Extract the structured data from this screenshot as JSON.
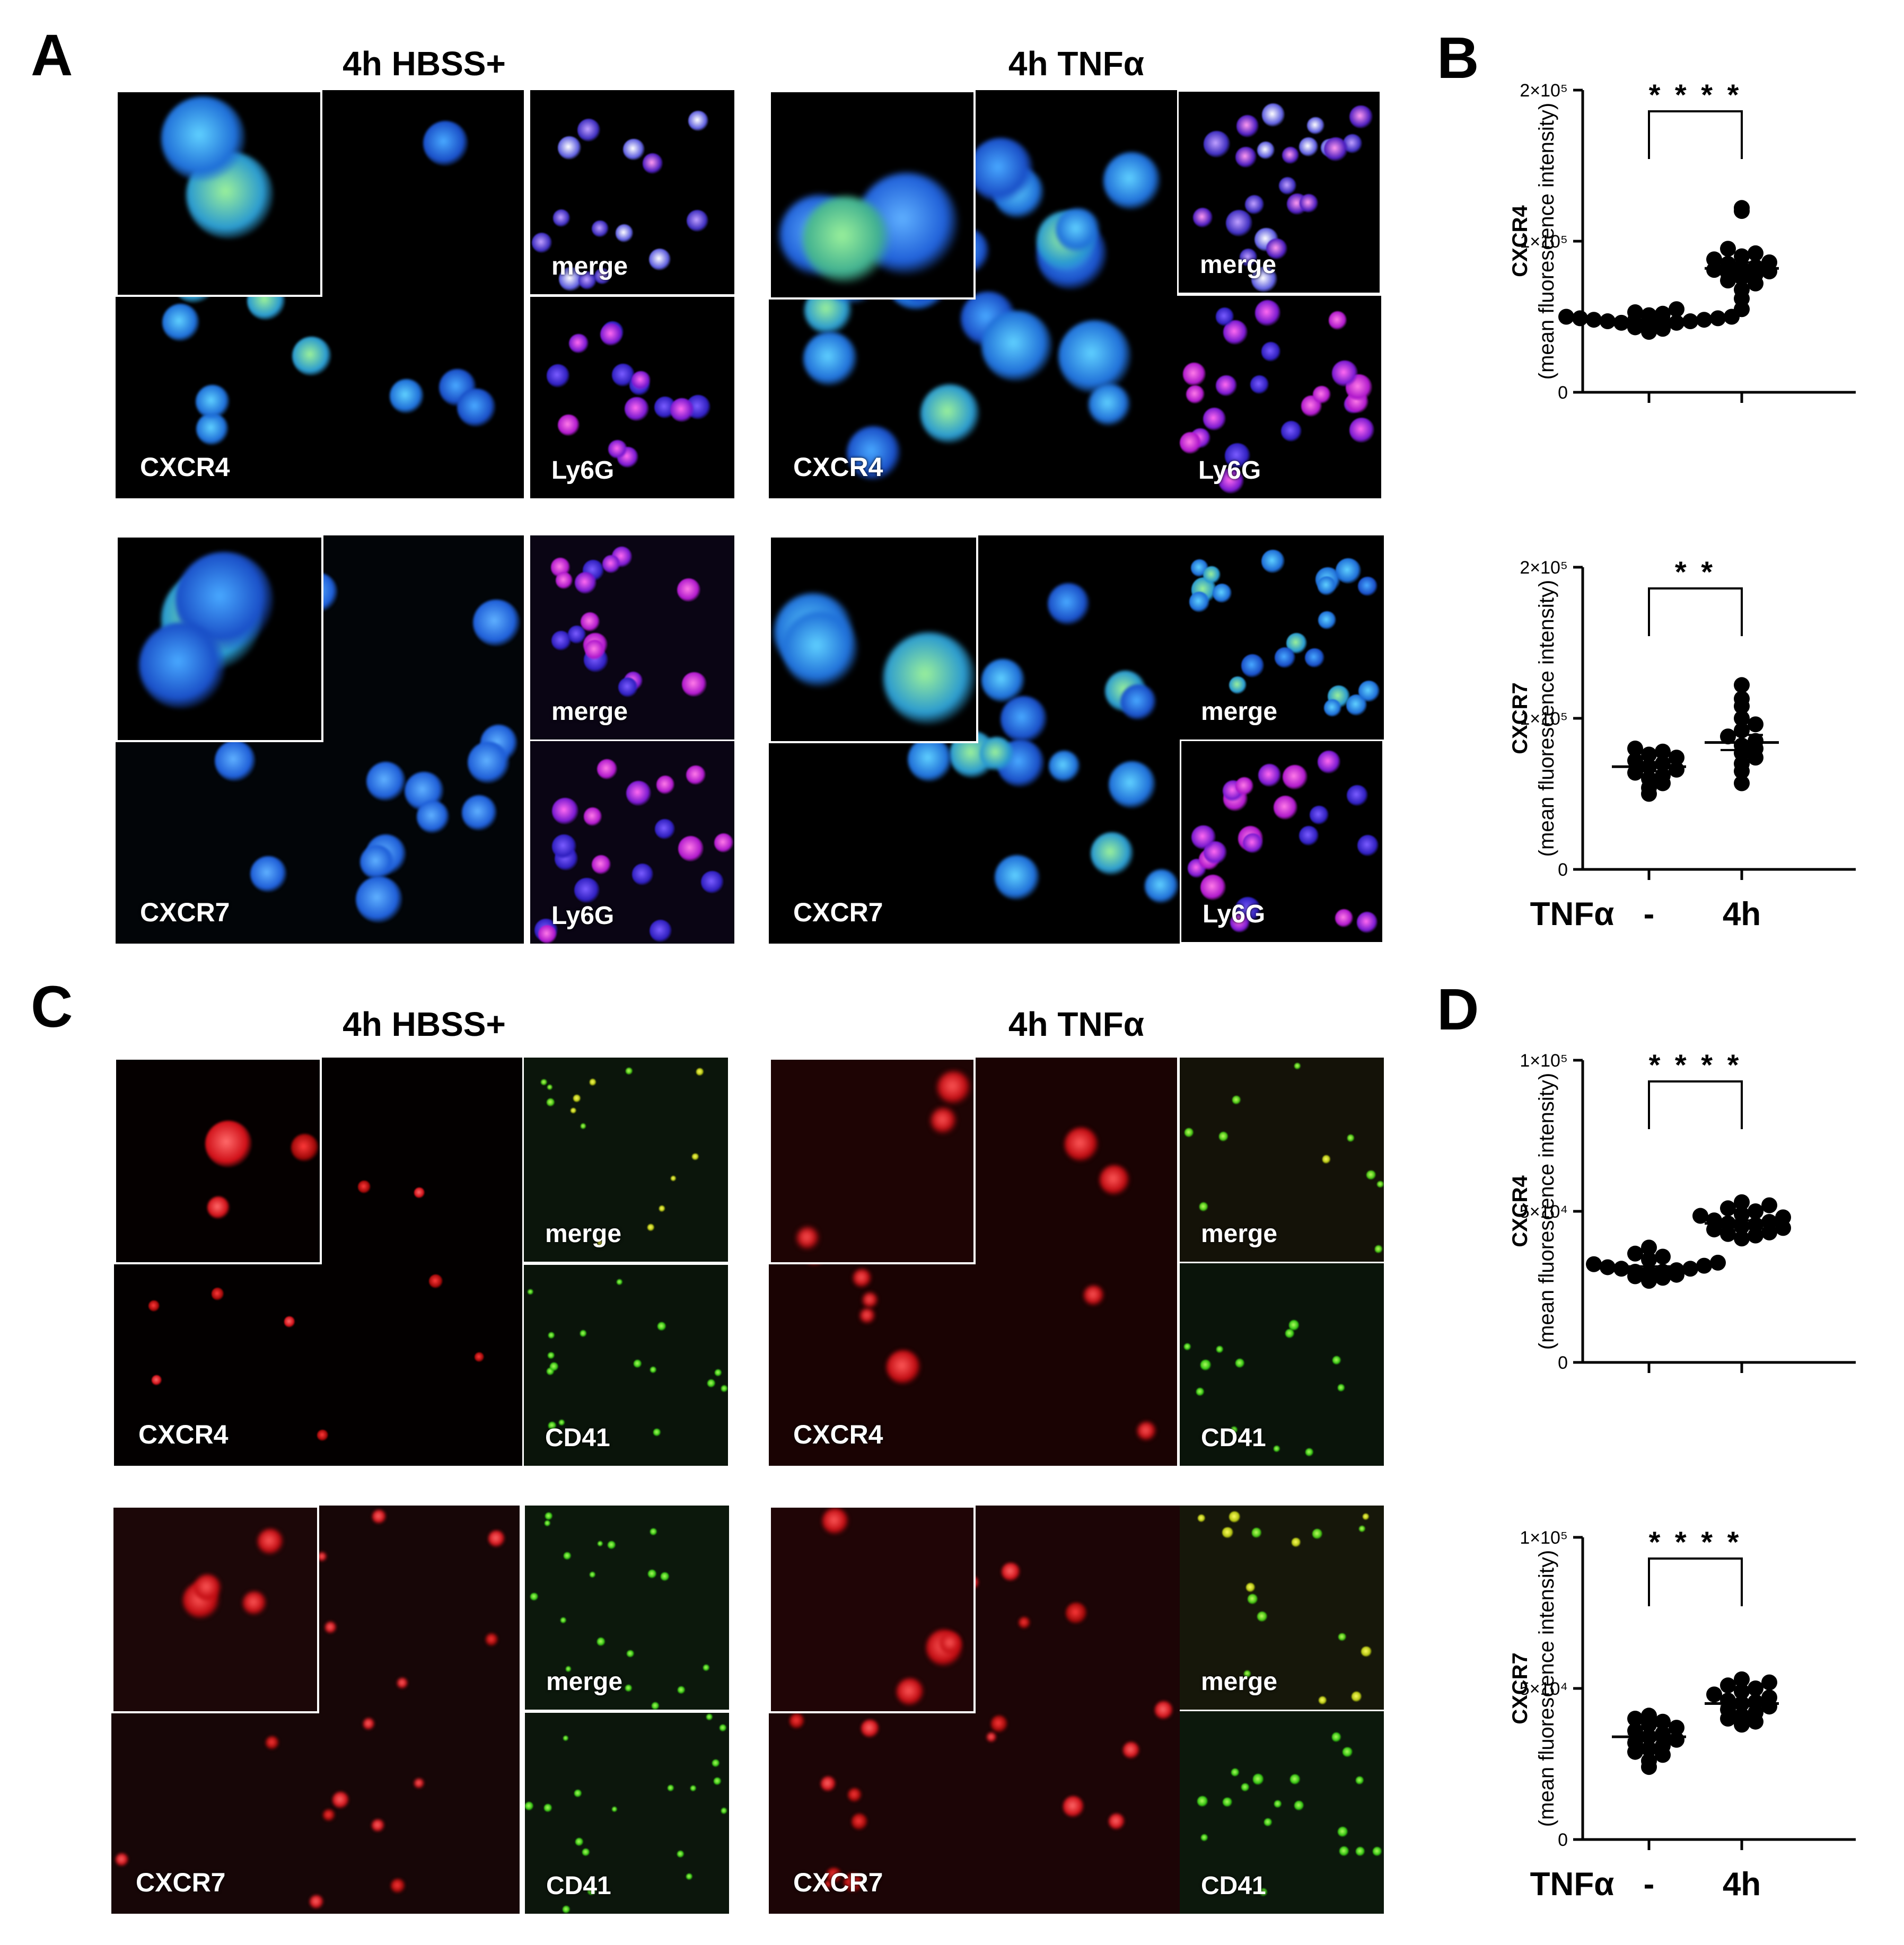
{
  "panel_labels": {
    "A": "A",
    "B": "B",
    "C": "C",
    "D": "D"
  },
  "panel_a": {
    "col_hbss": "4h HBSS+",
    "col_tnf": "4h TNFα",
    "row1_marker": "CXCR4",
    "row2_marker": "CXCR7",
    "merge": "merge",
    "costain": "Ly6G"
  },
  "panel_c": {
    "col_hbss": "4h HBSS+",
    "col_tnf": "4h TNFα",
    "row1_marker": "CXCR4",
    "row2_marker": "CXCR7",
    "merge": "merge",
    "costain": "CD41"
  },
  "colors": {
    "nucleus_blue": "#1f6fe0",
    "cxcr_green": "#2fd85a",
    "ly6g_magenta": "#d21cd8",
    "cxcr_red": "#e5232b",
    "cd41_green": "#3fdc2a"
  },
  "chart_data": [
    {
      "panel": "B",
      "type": "scatter",
      "ylabel_line1": "CXCR4",
      "ylabel_line2": "(mean fluorescence intensity)",
      "yticks": [
        "0",
        "1×10⁵",
        "2×10⁵"
      ],
      "ylim": [
        0,
        200000
      ],
      "groups": [
        {
          "label": "-",
          "mean": 48000,
          "sem": 1500,
          "values": [
            40000,
            42000,
            43000,
            44000,
            45000,
            45000,
            46000,
            46000,
            47000,
            47000,
            48000,
            48000,
            49000,
            49000,
            50000,
            50000,
            51000,
            52000,
            53000,
            55000
          ]
        },
        {
          "label": "4h",
          "mean": 82000,
          "sem": 4000,
          "values": [
            55000,
            62000,
            68000,
            72000,
            74000,
            76000,
            78000,
            79000,
            80000,
            81000,
            82000,
            83000,
            85000,
            86000,
            88000,
            90000,
            92000,
            95000,
            120000,
            122000
          ]
        }
      ],
      "significance": "* * * *",
      "x_factor": "",
      "x_tick_labels_shown": false
    },
    {
      "panel": "B",
      "type": "scatter",
      "ylabel_line1": "CXCR7",
      "ylabel_line2": "(mean fluorescence intensity)",
      "yticks": [
        "0",
        "1×10⁵",
        "2×10⁵"
      ],
      "ylim": [
        0,
        200000
      ],
      "groups": [
        {
          "label": "-",
          "mean": 68000,
          "sem": 3000,
          "values": [
            50000,
            54000,
            57000,
            60000,
            62000,
            64000,
            66000,
            68000,
            70000,
            72000,
            74000,
            76000,
            78000,
            80000
          ]
        },
        {
          "label": "4h",
          "mean": 84000,
          "sem": 5000,
          "values": [
            57000,
            65000,
            70000,
            74000,
            77000,
            80000,
            82000,
            85000,
            88000,
            92000,
            96000,
            100000,
            108000,
            113000,
            122000
          ]
        }
      ],
      "significance": "* *",
      "x_factor": "TNFα",
      "x_tick_labels_shown": true
    },
    {
      "panel": "D",
      "type": "scatter",
      "ylabel_line1": "CXCR4",
      "ylabel_line2": "(mean fluorescence intensity)",
      "yticks": [
        "0",
        "5×10⁴",
        "1×10⁵"
      ],
      "ylim": [
        0,
        100000
      ],
      "groups": [
        {
          "label": "-",
          "mean": 31000,
          "sem": 800,
          "values": [
            27000,
            28000,
            28500,
            29000,
            29500,
            30000,
            30000,
            30500,
            31000,
            31000,
            31500,
            32000,
            32500,
            33000,
            34000,
            35000,
            36000,
            38000
          ]
        },
        {
          "label": "4h",
          "mean": 46000,
          "sem": 1000,
          "values": [
            41000,
            42000,
            42500,
            43000,
            44000,
            44500,
            45000,
            45500,
            46000,
            46500,
            47000,
            48000,
            48500,
            49000,
            50000,
            51000,
            52000,
            53000
          ]
        }
      ],
      "significance": "* * * *",
      "x_factor": "",
      "x_tick_labels_shown": false
    },
    {
      "panel": "D",
      "type": "scatter",
      "ylabel_line1": "CXCR7",
      "ylabel_line2": "(mean fluorescence intensity)",
      "yticks": [
        "0",
        "5×10⁴",
        "1×10⁵"
      ],
      "ylim": [
        0,
        100000
      ],
      "groups": [
        {
          "label": "-",
          "mean": 34000,
          "sem": 1000,
          "values": [
            24000,
            26000,
            28000,
            29000,
            30000,
            31000,
            32000,
            33000,
            34000,
            35000,
            36000,
            37000,
            38000,
            39000,
            40000,
            41000
          ]
        },
        {
          "label": "4h",
          "mean": 45000,
          "sem": 900,
          "values": [
            38000,
            39000,
            40000,
            41000,
            42000,
            43000,
            44000,
            45000,
            45500,
            46000,
            47000,
            48000,
            49000,
            50000,
            51000,
            52000,
            53000
          ]
        }
      ],
      "significance": "* * * *",
      "x_factor": "TNFα",
      "x_tick_labels_shown": true
    }
  ]
}
